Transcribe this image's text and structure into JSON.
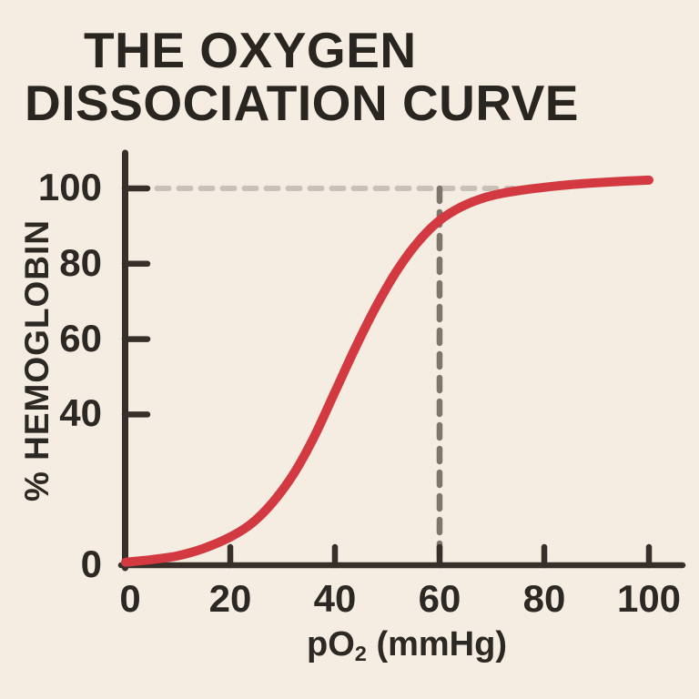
{
  "title": {
    "line1": "THE OXYGEN",
    "line2": "DISSOCIATION CURVE"
  },
  "colors": {
    "background": "#f5ece2",
    "text": "#292521",
    "axis": "#37302a",
    "curve": "#d23940",
    "dash_light": "#c8c1b7",
    "dash_dark": "#7e766b"
  },
  "chart_data": {
    "type": "line",
    "title": "THE OXYGEN DISSOCIATION CURVE",
    "xlabel": "pO2 (mmHg)",
    "xlabel_parts": {
      "base": "pO",
      "sub": "2",
      "suffix": " (mmHg)"
    },
    "ylabel": "% HEMOGLOBIN",
    "x_ticks": [
      0,
      20,
      40,
      60,
      80,
      100
    ],
    "y_ticks": [
      100,
      80,
      60,
      40,
      0
    ],
    "xlim": [
      0,
      107
    ],
    "ylim": [
      0,
      107
    ],
    "grid": false,
    "legend": "none",
    "series": [
      {
        "name": "oxygen-dissociation-curve",
        "color": "#d23940",
        "points": [
          [
            0,
            0.8
          ],
          [
            5,
            1.5
          ],
          [
            10,
            2.5
          ],
          [
            15,
            4.5
          ],
          [
            20,
            7.5
          ],
          [
            24,
            11
          ],
          [
            28,
            16.5
          ],
          [
            32,
            24
          ],
          [
            36,
            34
          ],
          [
            40,
            46
          ],
          [
            44,
            58
          ],
          [
            48,
            69
          ],
          [
            52,
            78.5
          ],
          [
            56,
            86
          ],
          [
            60,
            91.5
          ],
          [
            64,
            95
          ],
          [
            68,
            97.3
          ],
          [
            72,
            98.7
          ],
          [
            76,
            99.6
          ],
          [
            80,
            100.3
          ],
          [
            85,
            101
          ],
          [
            90,
            101.5
          ],
          [
            95,
            101.9
          ],
          [
            100,
            102.2
          ]
        ]
      }
    ],
    "reference_lines": {
      "horizontal": {
        "value": 100,
        "from_x": 6,
        "to_x": 74,
        "color": "#c8c1b7",
        "style": "dashed"
      },
      "vertical": {
        "value": 60,
        "from_y": 0.7,
        "to_y": 100,
        "color": "#7e766b",
        "style": "dashed"
      }
    }
  }
}
